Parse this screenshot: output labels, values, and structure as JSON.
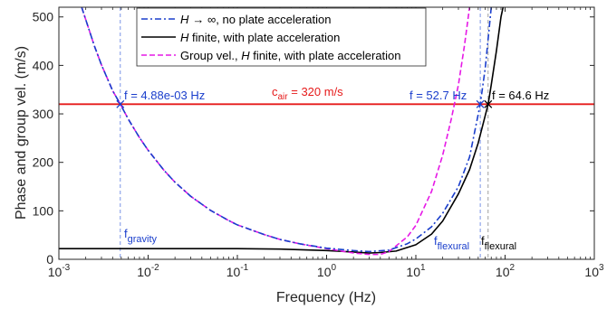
{
  "chart_data": {
    "type": "line",
    "xlabel": "Frequency (Hz)",
    "ylabel": "Phase and group vel. (m/s)",
    "xscale": "log",
    "xlim": [
      0.001,
      1000
    ],
    "ylim": [
      0,
      520
    ],
    "grid": false,
    "legend_position": "top-center",
    "x_ticks": [
      {
        "value": 0.001,
        "base": "10",
        "exp": "-3"
      },
      {
        "value": 0.01,
        "base": "10",
        "exp": "-2"
      },
      {
        "value": 0.1,
        "base": "10",
        "exp": "-1"
      },
      {
        "value": 1,
        "base": "10",
        "exp": "0"
      },
      {
        "value": 10,
        "base": "10",
        "exp": "1"
      },
      {
        "value": 100,
        "base": "10",
        "exp": "2"
      },
      {
        "value": 1000,
        "base": "10",
        "exp": "3"
      }
    ],
    "y_ticks": [
      0,
      100,
      200,
      300,
      400,
      500
    ],
    "series": [
      {
        "name": "H → ∞, no plate acceleration",
        "legend_prefix": "H",
        "legend_arrow": "→ ∞",
        "legend_rest": ", no plate acceleration",
        "color": "#1a3ecc",
        "style": "dashdot",
        "points": [
          [
            0.0018,
            520
          ],
          [
            0.0025,
            440
          ],
          [
            0.003,
            401
          ],
          [
            0.004,
            348
          ],
          [
            0.00488,
            320
          ],
          [
            0.006,
            289
          ],
          [
            0.008,
            251
          ],
          [
            0.01,
            225
          ],
          [
            0.015,
            184
          ],
          [
            0.02,
            159
          ],
          [
            0.03,
            130
          ],
          [
            0.05,
            101
          ],
          [
            0.08,
            80
          ],
          [
            0.1,
            71
          ],
          [
            0.2,
            51
          ],
          [
            0.3,
            41
          ],
          [
            0.5,
            32
          ],
          [
            1,
            23
          ],
          [
            2,
            18
          ],
          [
            3,
            16
          ],
          [
            5,
            19
          ],
          [
            8,
            32
          ],
          [
            10,
            42
          ],
          [
            15,
            67
          ],
          [
            20,
            95
          ],
          [
            30,
            150
          ],
          [
            40,
            211
          ],
          [
            52.7,
            320
          ],
          [
            60,
            395
          ],
          [
            70,
            520
          ]
        ]
      },
      {
        "name": "H finite, with plate acceleration",
        "legend_prefix": "H",
        "legend_rest": " finite, with plate acceleration",
        "color": "#000000",
        "style": "solid",
        "points": [
          [
            0.001,
            22
          ],
          [
            0.01,
            22
          ],
          [
            0.1,
            22
          ],
          [
            0.3,
            21
          ],
          [
            1,
            18
          ],
          [
            2,
            15
          ],
          [
            3,
            13
          ],
          [
            4,
            14
          ],
          [
            6,
            17
          ],
          [
            10,
            30
          ],
          [
            15,
            52
          ],
          [
            20,
            79
          ],
          [
            30,
            135
          ],
          [
            40,
            185
          ],
          [
            50,
            240
          ],
          [
            64.6,
            320
          ],
          [
            70,
            360
          ],
          [
            80,
            430
          ],
          [
            90,
            500
          ],
          [
            95,
            520
          ]
        ]
      },
      {
        "name": "Group vel., H finite, with plate acceleration",
        "legend_prefix": "Group vel., ",
        "legend_italic": "H",
        "legend_rest": " finite, with plate acceleration",
        "color": "#e619e6",
        "style": "dashed",
        "points": [
          [
            0.0018,
            520
          ],
          [
            0.0025,
            440
          ],
          [
            0.003,
            401
          ],
          [
            0.004,
            348
          ],
          [
            0.00488,
            320
          ],
          [
            0.006,
            289
          ],
          [
            0.008,
            251
          ],
          [
            0.01,
            225
          ],
          [
            0.015,
            184
          ],
          [
            0.02,
            159
          ],
          [
            0.03,
            130
          ],
          [
            0.05,
            101
          ],
          [
            0.08,
            80
          ],
          [
            0.1,
            71
          ],
          [
            0.2,
            51
          ],
          [
            0.3,
            41
          ],
          [
            0.5,
            32
          ],
          [
            1,
            22
          ],
          [
            2,
            13
          ],
          [
            3,
            10
          ],
          [
            4,
            10
          ],
          [
            5,
            16
          ],
          [
            8,
            46
          ],
          [
            10,
            70
          ],
          [
            15,
            140
          ],
          [
            20,
            215
          ],
          [
            25,
            290
          ],
          [
            30,
            360
          ],
          [
            35,
            440
          ],
          [
            40,
            520
          ]
        ]
      }
    ],
    "reference_line": {
      "y": 320,
      "color": "#e61a1a",
      "label_main": "c",
      "label_sub": "air",
      "label_rest": " = 320 m/s"
    },
    "vertical_lines": [
      {
        "x": 0.00488,
        "color": "#5a7ae0"
      },
      {
        "x": 52.7,
        "color": "#5a7ae0"
      },
      {
        "x": 64.6,
        "color": "#888888"
      }
    ],
    "crossings": [
      {
        "x": 0.00488,
        "y": 320,
        "color": "#1a3ecc"
      },
      {
        "x": 52.7,
        "y": 320,
        "color": "#1a3ecc"
      },
      {
        "x": 64.6,
        "y": 320,
        "color": "#000000"
      }
    ],
    "annotations": [
      {
        "text": "f = 4.88e-03 Hz",
        "color": "#1a3ecc"
      },
      {
        "text": "f = 52.7 Hz",
        "color": "#1a3ecc"
      },
      {
        "text": "f = 64.6 Hz",
        "color": "#000000"
      },
      {
        "main": "f",
        "sub": "gravity",
        "color": "#1a3ecc"
      },
      {
        "main": "f",
        "sub": "flexural",
        "color": "#1a3ecc"
      },
      {
        "main": "f",
        "sub": "flexural",
        "color": "#000000"
      }
    ]
  }
}
